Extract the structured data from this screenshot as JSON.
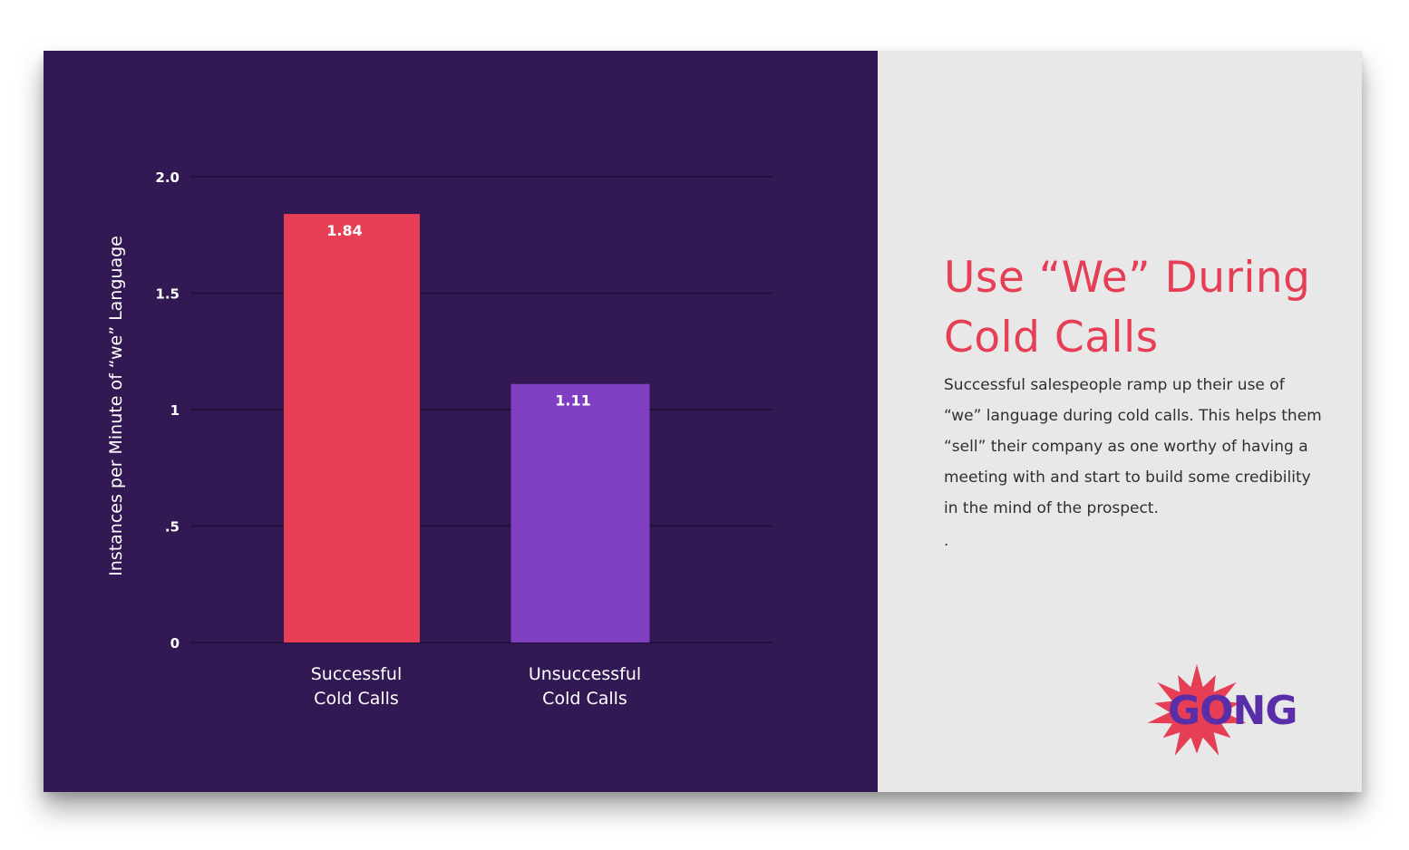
{
  "chart_data": {
    "type": "bar",
    "categories": [
      [
        "Successful",
        "Cold Calls"
      ],
      [
        "Unsuccessful",
        "Cold Calls"
      ]
    ],
    "values": [
      1.84,
      1.11
    ],
    "value_labels": [
      "1.84",
      "1.11"
    ],
    "colors": [
      "#e63e55",
      "#7f3fc2"
    ],
    "ylabel": "Instances per Minute of “we” Language",
    "ylim": [
      0,
      2.0
    ],
    "yticks": [
      {
        "value": 0,
        "label": "0"
      },
      {
        "value": 0.5,
        "label": ".5"
      },
      {
        "value": 1,
        "label": "1"
      },
      {
        "value": 1.5,
        "label": "1.5"
      },
      {
        "value": 2.0,
        "label": "2.0"
      }
    ],
    "grid": true
  },
  "panel": {
    "headline_lines": [
      "Use “We” During",
      "Cold Calls"
    ],
    "body": "Successful salespeople ramp up their use of “we” language during cold calls. This helps them “sell” their company as one worthy of having a meeting with and start to build some credibility in the mind of the prospect.",
    "trailing": "."
  },
  "logo": {
    "text": "GONG",
    "burst_color": "#e63e55",
    "text_color": "#5a2ea8"
  },
  "colors": {
    "chart_background": "#321954",
    "text_background": "#e8e8e8",
    "accent": "#e63e55"
  }
}
